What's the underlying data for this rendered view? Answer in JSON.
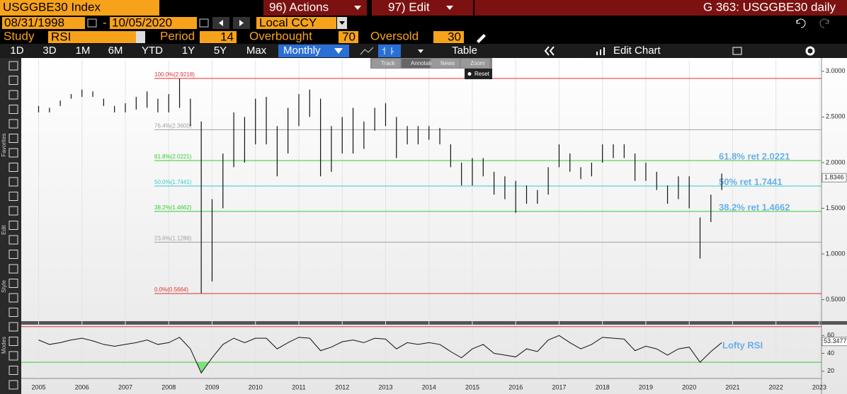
{
  "header": {
    "ticker": "USGGBE30 Index",
    "actions": "96) Actions",
    "edit": "97) Edit",
    "page": "G 363: USGGBE30 daily",
    "start_date": "08/31/1998",
    "dash": "-",
    "end_date": "10/05/2020",
    "currency": "Local CCY",
    "study_label": "Study",
    "study": "RSI",
    "period_label": "Period",
    "period": "14",
    "overbought_label": "Overbought",
    "overbought": "70",
    "oversold_label": "Oversold",
    "oversold": "30",
    "ranges": [
      "1D",
      "3D",
      "1M",
      "6M",
      "YTD",
      "1Y",
      "5Y",
      "Max"
    ],
    "frequency": "Monthly",
    "table": "Table",
    "edit_chart": "Edit Chart",
    "overlay": [
      "Track",
      "Annotate",
      "News",
      "Zoom"
    ],
    "reset": "Reset",
    "side_labels": [
      "Favorites",
      "Edit",
      "Style",
      "Modes"
    ]
  },
  "chart_data": [
    {
      "type": "ohlc",
      "x": [
        2005,
        2005.25,
        2005.5,
        2005.75,
        2006,
        2006.25,
        2006.5,
        2006.75,
        2007,
        2007.25,
        2007.5,
        2007.75,
        2008,
        2008.25,
        2008.5,
        2008.75,
        2009,
        2009.25,
        2009.5,
        2009.75,
        2010,
        2010.25,
        2010.5,
        2010.75,
        2011,
        2011.25,
        2011.5,
        2011.75,
        2012,
        2012.25,
        2012.5,
        2012.75,
        2013,
        2013.25,
        2013.5,
        2013.75,
        2014,
        2014.25,
        2014.5,
        2014.75,
        2015,
        2015.25,
        2015.5,
        2015.75,
        2016,
        2016.25,
        2016.5,
        2016.75,
        2017,
        2017.25,
        2017.5,
        2017.75,
        2018,
        2018.25,
        2018.5,
        2018.75,
        2019,
        2019.25,
        2019.5,
        2019.75,
        2020,
        2020.25,
        2020.5,
        2020.75
      ],
      "high": [
        2.62,
        2.6,
        2.68,
        2.75,
        2.8,
        2.78,
        2.7,
        2.62,
        2.65,
        2.72,
        2.78,
        2.7,
        2.75,
        2.92,
        2.7,
        2.45,
        1.6,
        2.1,
        2.55,
        2.5,
        2.7,
        2.72,
        2.4,
        2.6,
        2.75,
        2.8,
        2.7,
        2.4,
        2.5,
        2.6,
        2.45,
        2.6,
        2.65,
        2.5,
        2.4,
        2.4,
        2.4,
        2.38,
        2.2,
        2.0,
        2.05,
        2.05,
        1.9,
        1.85,
        1.8,
        1.75,
        1.7,
        1.95,
        2.2,
        2.1,
        1.95,
        2.0,
        2.2,
        2.2,
        2.2,
        2.1,
        2.0,
        1.9,
        1.75,
        1.85,
        1.85,
        1.4,
        1.65,
        1.88
      ],
      "low": [
        2.55,
        2.55,
        2.62,
        2.7,
        2.72,
        2.72,
        2.62,
        2.55,
        2.55,
        2.58,
        2.6,
        2.55,
        2.55,
        2.6,
        2.4,
        0.57,
        0.7,
        1.5,
        1.95,
        2.0,
        2.2,
        2.2,
        1.85,
        2.1,
        2.4,
        2.5,
        1.85,
        1.9,
        2.1,
        2.1,
        2.15,
        2.35,
        2.4,
        2.05,
        2.2,
        2.2,
        2.25,
        2.2,
        1.95,
        1.75,
        1.75,
        1.85,
        1.65,
        1.6,
        1.45,
        1.55,
        1.55,
        1.65,
        1.95,
        1.9,
        1.82,
        1.85,
        2.0,
        2.05,
        2.05,
        1.8,
        1.8,
        1.7,
        1.55,
        1.6,
        1.5,
        0.95,
        1.35,
        1.7
      ],
      "color": "#111111",
      "xlim": [
        2004.6,
        2023.05
      ],
      "xticks": [
        2005,
        2006,
        2007,
        2008,
        2009,
        2010,
        2011,
        2012,
        2013,
        2014,
        2015,
        2016,
        2017,
        2018,
        2019,
        2020,
        2021,
        2022,
        2023
      ],
      "ylim": [
        0.28,
        3.13
      ],
      "yticks": [
        {
          "value": 3,
          "label": "3.0000"
        },
        {
          "value": 2.5,
          "label": "2.5000"
        },
        {
          "value": 2,
          "label": "2.0000"
        },
        {
          "value": 1.5,
          "label": "1.5000"
        },
        {
          "value": 1,
          "label": "1.0000"
        },
        {
          "value": 0.5,
          "label": "0.5000"
        }
      ],
      "levels": [
        {
          "label": "100.0%(2.9218)",
          "value": 2.9218,
          "color": "#e03030"
        },
        {
          "label": "76.4%(2.3600)",
          "value": 2.36,
          "color": "#a0a0a0"
        },
        {
          "label": "61.8%(2.0221)",
          "value": 2.0221,
          "color": "#33cc33"
        },
        {
          "label": "50.0%(1.7441)",
          "value": 1.7441,
          "color": "#33cccc"
        },
        {
          "label": "38.2%(1.4662)",
          "value": 1.4662,
          "color": "#33cc33"
        },
        {
          "label": "23.6%(1.1286)",
          "value": 1.1286,
          "color": "#a0a0a0"
        },
        {
          "label": "0.0%(0.5664)",
          "value": 0.5664,
          "color": "#e03030"
        }
      ],
      "annotations": [
        {
          "label": "61.8% ret 2.0221",
          "value": 2.0221
        },
        {
          "label": "50% ret 1.7441",
          "value": 1.7441
        },
        {
          "label": "38.2% ret 1.4662",
          "value": 1.4662
        }
      ],
      "annotation_color": "#6aaee8",
      "last": {
        "value": 1.8346,
        "label": "1.8346"
      }
    },
    {
      "type": "line",
      "name": "Lofty RSI",
      "color": "#111111",
      "x": [
        2005,
        2005.25,
        2005.5,
        2005.75,
        2006,
        2006.25,
        2006.5,
        2006.75,
        2007,
        2007.25,
        2007.5,
        2007.75,
        2008,
        2008.25,
        2008.5,
        2008.75,
        2009,
        2009.25,
        2009.5,
        2009.75,
        2010,
        2010.25,
        2010.5,
        2010.75,
        2011,
        2011.25,
        2011.5,
        2011.75,
        2012,
        2012.25,
        2012.5,
        2012.75,
        2013,
        2013.25,
        2013.5,
        2013.75,
        2014,
        2014.25,
        2014.5,
        2014.75,
        2015,
        2015.25,
        2015.5,
        2015.75,
        2016,
        2016.25,
        2016.5,
        2016.75,
        2017,
        2017.25,
        2017.5,
        2017.75,
        2018,
        2018.25,
        2018.5,
        2018.75,
        2019,
        2019.25,
        2019.5,
        2019.75,
        2020,
        2020.25,
        2020.5,
        2020.75
      ],
      "values": [
        55,
        50,
        52,
        55,
        57,
        54,
        50,
        48,
        50,
        52,
        55,
        50,
        52,
        58,
        45,
        18,
        35,
        50,
        57,
        52,
        57,
        57,
        45,
        52,
        58,
        57,
        43,
        47,
        53,
        55,
        52,
        57,
        56,
        45,
        52,
        50,
        52,
        50,
        42,
        35,
        45,
        50,
        40,
        38,
        36,
        45,
        42,
        55,
        60,
        52,
        45,
        50,
        58,
        57,
        56,
        43,
        48,
        45,
        38,
        45,
        47,
        30,
        42,
        52
      ],
      "ylim": [
        11.8,
        71.4
      ],
      "yticks": [
        60,
        40,
        20
      ],
      "overbought": 70,
      "oversold": 30,
      "last": {
        "value": 53.3477,
        "label": "53.3477"
      }
    }
  ]
}
